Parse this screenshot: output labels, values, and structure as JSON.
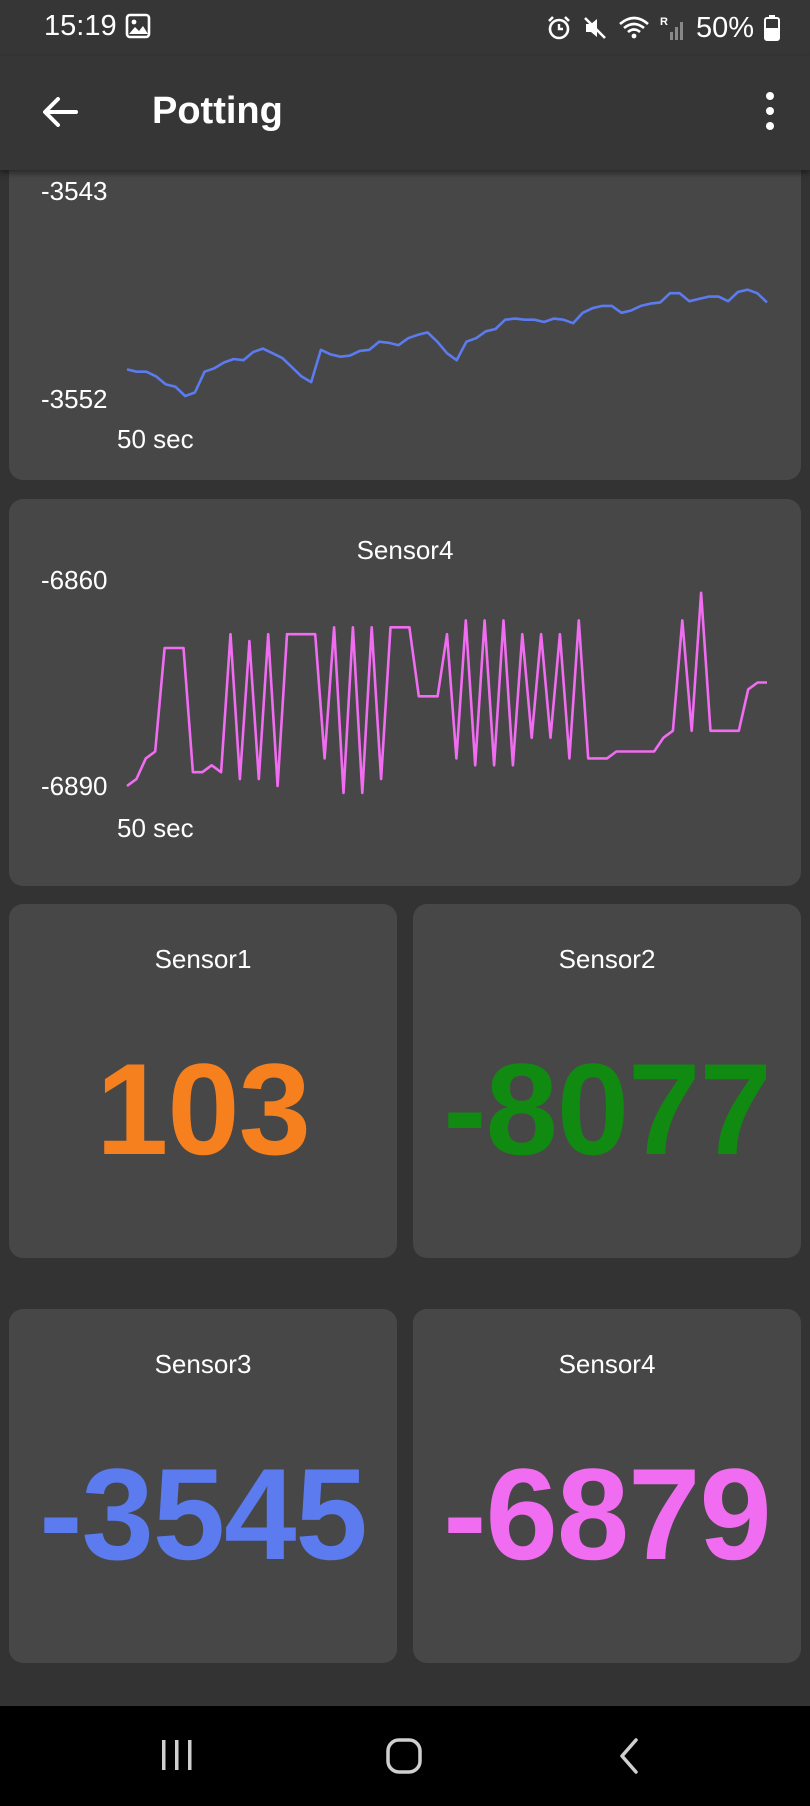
{
  "status_bar": {
    "time": "15:19",
    "battery": "50%",
    "icons": [
      "image-icon",
      "alarm-icon",
      "mute-icon",
      "wifi-icon",
      "signal-icon",
      "battery-icon"
    ]
  },
  "app_bar": {
    "title": "Potting",
    "icons": [
      "back-arrow-icon",
      "more-vert-icon"
    ]
  },
  "charts": [
    {
      "title": "",
      "y_max_label": "-3543",
      "y_min_label": "-3552",
      "x_label": "50 sec",
      "color": "#5b7bef"
    },
    {
      "title": "Sensor4",
      "y_max_label": "-6860",
      "y_min_label": "-6890",
      "x_label": "50 sec",
      "color": "#f06cf0"
    }
  ],
  "chart_data": [
    {
      "type": "line",
      "ylim": [
        -3552,
        -3543
      ],
      "series": [
        {
          "color": "#5b7bef",
          "values": [
            -3549.7,
            -3549.9,
            -3549.9,
            -3550.3,
            -3551.0,
            -3551.2,
            -3552.0,
            -3551.7,
            -3549.9,
            -3549.6,
            -3549.1,
            -3548.8,
            -3548.9,
            -3548.2,
            -3547.9,
            -3548.3,
            -3548.7,
            -3549.5,
            -3550.3,
            -3550.8,
            -3548.0,
            -3548.4,
            -3548.6,
            -3548.5,
            -3548.1,
            -3548.0,
            -3547.3,
            -3547.4,
            -3547.6,
            -3547.0,
            -3546.7,
            -3546.5,
            -3547.3,
            -3548.3,
            -3548.9,
            -3547.3,
            -3547.0,
            -3546.4,
            -3546.2,
            -3545.4,
            -3545.3,
            -3545.4,
            -3545.4,
            -3545.6,
            -3545.3,
            -3545.4,
            -3545.7,
            -3544.8,
            -3544.4,
            -3544.2,
            -3544.2,
            -3544.8,
            -3544.6,
            -3544.2,
            -3544.0,
            -3543.9,
            -3543.1,
            -3543.1,
            -3543.8,
            -3543.6,
            -3543.4,
            -3543.4,
            -3543.8,
            -3543.0,
            -3542.8,
            -3543.1,
            -3543.9
          ],
          "note_hidden": false
        }
      ]
    },
    {
      "type": "line",
      "title": "Sensor4",
      "xlabel": "50 sec",
      "ylim": [
        -6890,
        -6860
      ],
      "series": [
        {
          "color": "#f06cf0",
          "values": [
            -6890,
            -6889,
            -6886,
            -6885,
            -6870,
            -6870,
            -6870,
            -6888,
            -6888,
            -6887,
            -6888,
            -6868,
            -6889,
            -6869,
            -6889,
            -6868,
            -6890,
            -6868,
            -6868,
            -6868,
            -6868,
            -6886,
            -6867,
            -6891,
            -6867,
            -6891,
            -6867,
            -6889,
            -6867,
            -6867,
            -6867,
            -6877,
            -6877,
            -6877,
            -6868,
            -6886,
            -6866,
            -6887,
            -6866,
            -6887,
            -6866,
            -6887,
            -6868,
            -6883,
            -6868,
            -6883,
            -6868,
            -6886,
            -6866,
            -6886,
            -6886,
            -6886,
            -6885,
            -6885,
            -6885,
            -6885,
            -6885,
            -6883,
            -6882,
            -6866,
            -6882,
            -6862,
            -6882,
            -6882,
            -6882,
            -6882,
            -6876,
            -6875,
            -6875
          ]
        }
      ]
    }
  ],
  "tiles": [
    {
      "label": "Sensor1",
      "value": "103",
      "color": "#f7801e"
    },
    {
      "label": "Sensor2",
      "value": "-8077",
      "color": "#118a11"
    },
    {
      "label": "Sensor3",
      "value": "-3545",
      "color": "#5b7bef"
    },
    {
      "label": "Sensor4",
      "value": "-6879",
      "color": "#f06cf0"
    }
  ],
  "nav_bar": {
    "icons": [
      "recent-apps-icon",
      "home-icon",
      "back-icon"
    ]
  }
}
